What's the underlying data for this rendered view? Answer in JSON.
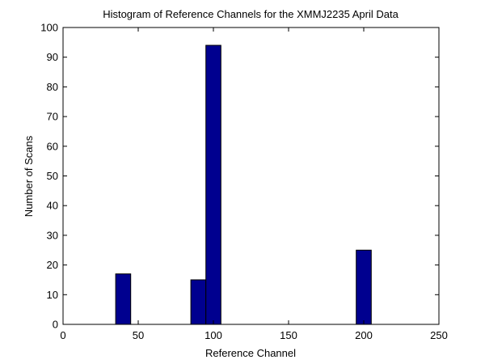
{
  "chart_data": {
    "type": "bar",
    "title": "Histogram of Reference Channels for the XMMJ2235 April Data",
    "xlabel": "Reference Channel",
    "ylabel": "Number of Scans",
    "xlim": [
      0,
      250
    ],
    "ylim": [
      0,
      100
    ],
    "xticks": [
      "0",
      "50",
      "100",
      "150",
      "200",
      "250"
    ],
    "yticks": [
      "0",
      "10",
      "20",
      "30",
      "40",
      "50",
      "60",
      "70",
      "80",
      "90",
      "100"
    ],
    "bin_width": 10,
    "bars": [
      {
        "x_start": 35,
        "x_end": 45,
        "value": 17
      },
      {
        "x_start": 85,
        "x_end": 95,
        "value": 15
      },
      {
        "x_start": 95,
        "x_end": 105,
        "value": 94
      },
      {
        "x_start": 195,
        "x_end": 205,
        "value": 25
      }
    ],
    "bar_color": "#00008f",
    "grid": false
  }
}
